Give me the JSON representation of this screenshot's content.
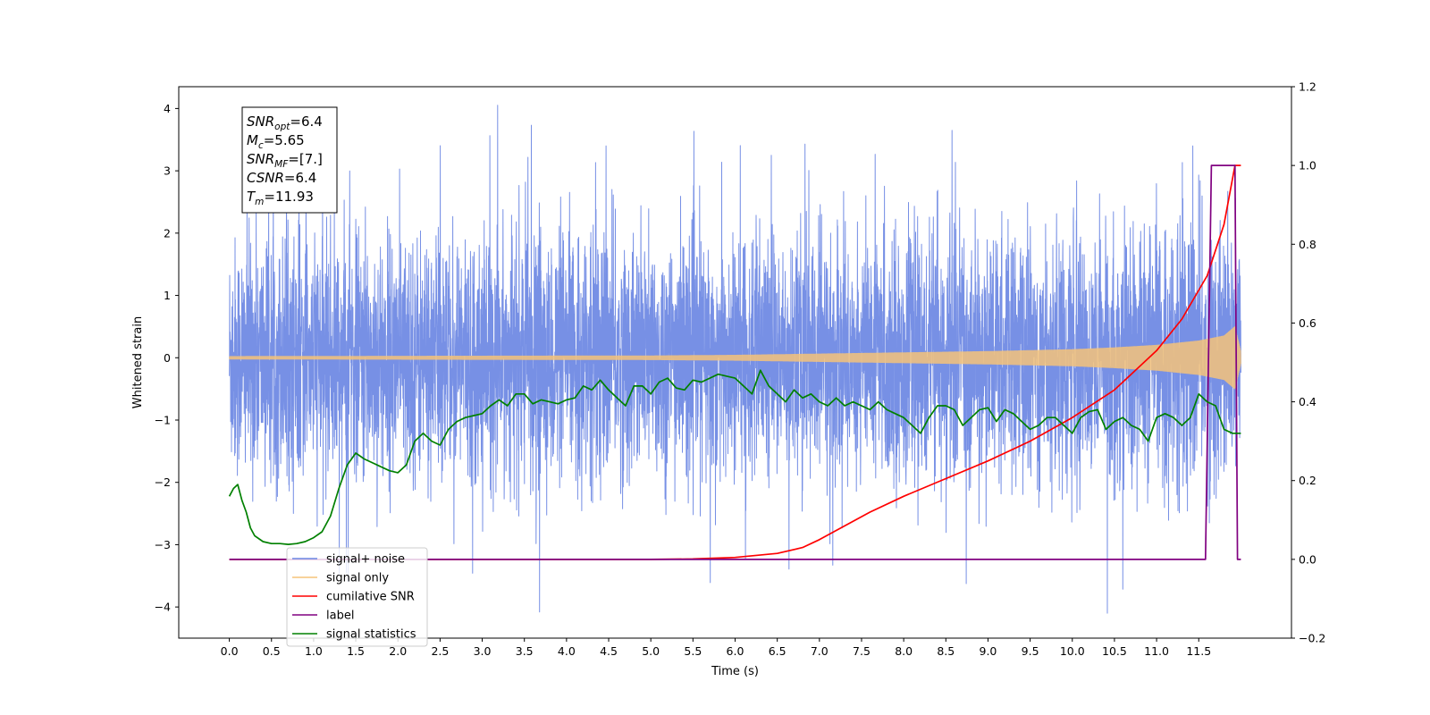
{
  "chart_data": {
    "type": "line",
    "xlabel": "Time (s)",
    "ylabel": "Whitened strain",
    "y2label": "",
    "xlim": [
      -0.6,
      12.6
    ],
    "ylim": [
      -4.5,
      4.35
    ],
    "y2lim": [
      -0.2,
      1.2
    ],
    "x_ticks": [
      "0.0",
      "0.5",
      "1.0",
      "1.5",
      "2.0",
      "2.5",
      "3.0",
      "3.5",
      "4.0",
      "4.5",
      "5.0",
      "5.5",
      "6.0",
      "6.5",
      "7.0",
      "7.5",
      "8.0",
      "8.5",
      "9.0",
      "9.5",
      "10.0",
      "10.5",
      "11.0",
      "11.5"
    ],
    "y_ticks": [
      "-4",
      "-3",
      "-2",
      "-1",
      "0",
      "1",
      "2",
      "3",
      "4"
    ],
    "y2_ticks": [
      "−0.2",
      "0.0",
      "0.2",
      "0.4",
      "0.6",
      "0.8",
      "1.0",
      "1.2"
    ],
    "grid": false,
    "legend_position": "lower-left",
    "annotation": {
      "lines": [
        {
          "label": "SNR",
          "sub": "opt",
          "value": "=6.4"
        },
        {
          "label": "M",
          "sub": "c",
          "value": "=5.65"
        },
        {
          "label": "SNR",
          "sub": "MF",
          "value": "=[7.]"
        },
        {
          "label": "CSNR",
          "sub": "",
          "value": "=6.4"
        },
        {
          "label": "T",
          "sub": "m",
          "value": "=11.93"
        }
      ]
    },
    "series": [
      {
        "name": "signal+ noise",
        "color": "#6b87e3",
        "axis": "left",
        "kind": "noise",
        "x_range": [
          0.0,
          12.0
        ],
        "amplitude_envelope": {
          "x": [
            0,
            6,
            10,
            11,
            11.8,
            12.0
          ],
          "sd": [
            0.95,
            0.95,
            0.97,
            1.0,
            1.05,
            1.0
          ]
        },
        "peaks_range": [
          -4.1,
          4.2
        ]
      },
      {
        "name": "signal only",
        "color": "#f5c37a",
        "axis": "left",
        "kind": "chirp",
        "x_range": [
          0.0,
          12.0
        ],
        "amplitude_envelope": {
          "x": [
            0,
            5,
            6,
            7,
            8,
            9,
            10,
            10.5,
            11,
            11.5,
            11.8,
            11.93,
            12.0
          ],
          "amp": [
            0.02,
            0.03,
            0.04,
            0.06,
            0.08,
            0.1,
            0.13,
            0.16,
            0.2,
            0.27,
            0.35,
            0.5,
            0.1
          ]
        }
      },
      {
        "name": "cumilative SNR",
        "color": "#ff0000",
        "axis": "right",
        "x": [
          0,
          5.0,
          5.5,
          6.0,
          6.5,
          6.8,
          7.0,
          7.3,
          7.6,
          8.0,
          8.5,
          9.0,
          9.5,
          10.0,
          10.5,
          11.0,
          11.3,
          11.6,
          11.8,
          11.93,
          12.0
        ],
        "values": [
          0,
          0,
          0.001,
          0.005,
          0.015,
          0.03,
          0.05,
          0.085,
          0.12,
          0.16,
          0.205,
          0.25,
          0.3,
          0.36,
          0.43,
          0.53,
          0.61,
          0.72,
          0.85,
          1.0,
          1.0
        ]
      },
      {
        "name": "label",
        "color": "#800080",
        "axis": "right",
        "x": [
          0,
          11.58,
          11.65,
          11.93,
          11.96,
          12.0
        ],
        "values": [
          0,
          0,
          1,
          1,
          0,
          0
        ]
      },
      {
        "name": "signal statistics",
        "color": "#008000",
        "axis": "right",
        "x": [
          0.0,
          0.05,
          0.1,
          0.15,
          0.2,
          0.25,
          0.3,
          0.4,
          0.5,
          0.6,
          0.7,
          0.8,
          0.9,
          1.0,
          1.1,
          1.2,
          1.3,
          1.4,
          1.5,
          1.6,
          1.7,
          1.8,
          1.9,
          2.0,
          2.1,
          2.2,
          2.3,
          2.4,
          2.5,
          2.6,
          2.7,
          2.8,
          2.9,
          3.0,
          3.1,
          3.2,
          3.3,
          3.4,
          3.5,
          3.6,
          3.7,
          3.8,
          3.9,
          4.0,
          4.1,
          4.2,
          4.3,
          4.4,
          4.5,
          4.6,
          4.7,
          4.8,
          4.9,
          5.0,
          5.1,
          5.2,
          5.3,
          5.4,
          5.5,
          5.6,
          5.7,
          5.8,
          5.9,
          6.0,
          6.1,
          6.2,
          6.3,
          6.4,
          6.5,
          6.6,
          6.7,
          6.8,
          6.9,
          7.0,
          7.1,
          7.2,
          7.3,
          7.4,
          7.5,
          7.6,
          7.7,
          7.8,
          7.9,
          8.0,
          8.1,
          8.2,
          8.3,
          8.4,
          8.5,
          8.6,
          8.7,
          8.8,
          8.9,
          9.0,
          9.1,
          9.2,
          9.3,
          9.4,
          9.5,
          9.6,
          9.7,
          9.8,
          9.9,
          10.0,
          10.1,
          10.2,
          10.3,
          10.4,
          10.5,
          10.6,
          10.7,
          10.8,
          10.9,
          11.0,
          11.1,
          11.2,
          11.3,
          11.4,
          11.5,
          11.6,
          11.7,
          11.8,
          11.9,
          12.0
        ],
        "values": [
          0.16,
          0.18,
          0.19,
          0.15,
          0.12,
          0.08,
          0.06,
          0.045,
          0.04,
          0.04,
          0.038,
          0.04,
          0.045,
          0.055,
          0.07,
          0.11,
          0.18,
          0.24,
          0.27,
          0.255,
          0.245,
          0.235,
          0.225,
          0.22,
          0.24,
          0.3,
          0.32,
          0.3,
          0.29,
          0.33,
          0.35,
          0.36,
          0.365,
          0.37,
          0.39,
          0.405,
          0.39,
          0.42,
          0.42,
          0.395,
          0.405,
          0.4,
          0.395,
          0.405,
          0.41,
          0.44,
          0.43,
          0.455,
          0.43,
          0.41,
          0.39,
          0.44,
          0.44,
          0.42,
          0.45,
          0.46,
          0.435,
          0.43,
          0.455,
          0.45,
          0.46,
          0.47,
          0.465,
          0.46,
          0.44,
          0.42,
          0.48,
          0.44,
          0.42,
          0.4,
          0.43,
          0.41,
          0.42,
          0.4,
          0.39,
          0.41,
          0.39,
          0.4,
          0.39,
          0.38,
          0.4,
          0.38,
          0.37,
          0.36,
          0.34,
          0.32,
          0.36,
          0.39,
          0.39,
          0.38,
          0.34,
          0.36,
          0.38,
          0.385,
          0.35,
          0.38,
          0.37,
          0.35,
          0.33,
          0.34,
          0.36,
          0.36,
          0.34,
          0.32,
          0.36,
          0.375,
          0.38,
          0.33,
          0.35,
          0.36,
          0.34,
          0.33,
          0.3,
          0.36,
          0.37,
          0.36,
          0.34,
          0.36,
          0.42,
          0.4,
          0.39,
          0.33,
          0.32,
          0.32
        ]
      }
    ]
  }
}
